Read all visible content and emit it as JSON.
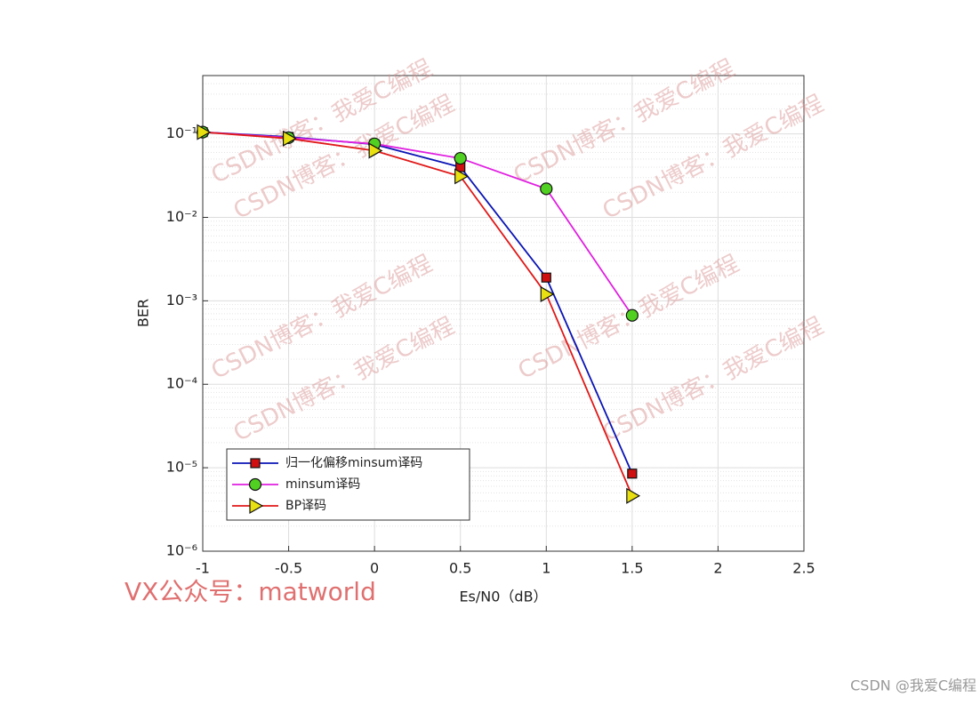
{
  "chart_data": {
    "type": "line",
    "xlabel": "Es/N0（dB）",
    "ylabel": "BER",
    "x": [
      -1,
      -0.5,
      0,
      0.5,
      1,
      1.5
    ],
    "series": [
      {
        "name": "归一化偏移minsum译码",
        "color": "#0a14b4",
        "marker": "square",
        "marker_color": "#d01010",
        "values": [
          0.105,
          0.092,
          0.075,
          0.04,
          0.0019,
          8.5e-06
        ]
      },
      {
        "name": "minsum译码",
        "color": "#e020e0",
        "marker": "circle",
        "marker_color": "#50d020",
        "values": [
          0.105,
          0.09,
          0.076,
          0.051,
          0.022,
          0.00067
        ]
      },
      {
        "name": "BP译码",
        "color": "#e01818",
        "marker": "triangle-right",
        "marker_color": "#e8e010",
        "values": [
          0.105,
          0.088,
          0.063,
          0.031,
          0.0012,
          4.6e-06
        ]
      }
    ],
    "xlim": [
      -1,
      2.5
    ],
    "xticks": [
      -1,
      -0.5,
      0,
      0.5,
      1,
      1.5,
      2,
      2.5
    ],
    "ylim": [
      1e-06,
      0.5
    ],
    "yscale": "log",
    "yticks": [
      {
        "value": 1e-06,
        "label": "10⁻⁶"
      },
      {
        "value": 1e-05,
        "label": "10⁻⁵"
      },
      {
        "value": 0.0001,
        "label": "10⁻⁴"
      },
      {
        "value": 0.001,
        "label": "10⁻³"
      },
      {
        "value": 0.01,
        "label": "10⁻²"
      },
      {
        "value": 0.1,
        "label": "10⁻¹"
      }
    ],
    "grid": true,
    "minor_grid": true,
    "legend_position": "lower left"
  },
  "watermark": "CSDN博客：我爱C编程",
  "vx_note": "VX公众号：matworld",
  "footer": "CSDN @我爱C编程"
}
